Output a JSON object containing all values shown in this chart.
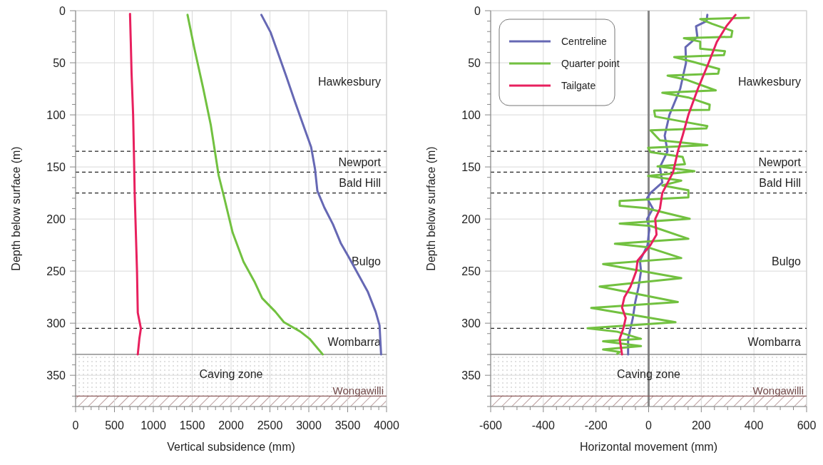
{
  "chart_data": [
    {
      "type": "line",
      "orientation": "horizontal",
      "xlabel": "Vertical subsidence (mm)",
      "ylabel": "Depth below surface (m)",
      "xlim": [
        0,
        4000
      ],
      "xticks": [
        0,
        {
          "value": 100,
          "label": null
        },
        {
          "value": 200,
          "label": null
        },
        {
          "value": 300,
          "label": null
        },
        {
          "value": 400,
          "label": null
        },
        500,
        {
          "value": 600,
          "label": null
        },
        {
          "value": 700,
          "label": null
        },
        {
          "value": 800,
          "label": null
        },
        {
          "value": 900,
          "label": null
        },
        1000,
        {
          "value": 1100,
          "label": null
        },
        {
          "value": 1200,
          "label": null
        },
        {
          "value": 1300,
          "label": null
        },
        {
          "value": 1400,
          "label": null
        },
        1500,
        {
          "value": 1600,
          "label": null
        },
        {
          "value": 1700,
          "label": null
        },
        {
          "value": 1800,
          "label": null
        },
        {
          "value": 1900,
          "label": null
        },
        2000,
        {
          "value": 2100,
          "label": null
        },
        {
          "value": 2200,
          "label": null
        },
        {
          "value": 2300,
          "label": null
        },
        {
          "value": 2400,
          "label": null
        },
        2500,
        {
          "value": 2600,
          "label": null
        },
        {
          "value": 2700,
          "label": null
        },
        {
          "value": 2800,
          "label": null
        },
        {
          "value": 2900,
          "label": null
        },
        3000,
        {
          "value": 3100,
          "label": null
        },
        {
          "value": 3200,
          "label": null
        },
        {
          "value": 3300,
          "label": null
        },
        {
          "value": 3400,
          "label": null
        },
        3500,
        {
          "value": 3600,
          "label": null
        },
        {
          "value": 3700,
          "label": null
        },
        {
          "value": 3800,
          "label": null
        },
        {
          "value": 3900,
          "label": null
        },
        4000
      ],
      "ylim": [
        380,
        0
      ],
      "yticks": [
        0,
        {
          "value": 10,
          "label": null
        },
        {
          "value": 20,
          "label": null
        },
        {
          "value": 30,
          "label": null
        },
        {
          "value": 40,
          "label": null
        },
        50,
        {
          "value": 60,
          "label": null
        },
        {
          "value": 70,
          "label": null
        },
        {
          "value": 80,
          "label": null
        },
        {
          "value": 90,
          "label": null
        },
        100,
        {
          "value": 110,
          "label": null
        },
        {
          "value": 120,
          "label": null
        },
        {
          "value": 130,
          "label": null
        },
        {
          "value": 140,
          "label": null
        },
        150,
        {
          "value": 160,
          "label": null
        },
        {
          "value": 170,
          "label": null
        },
        {
          "value": 180,
          "label": null
        },
        {
          "value": 190,
          "label": null
        },
        200,
        {
          "value": 210,
          "label": null
        },
        {
          "value": 220,
          "label": null
        },
        {
          "value": 230,
          "label": null
        },
        {
          "value": 240,
          "label": null
        },
        250,
        {
          "value": 260,
          "label": null
        },
        {
          "value": 270,
          "label": null
        },
        {
          "value": 280,
          "label": null
        },
        {
          "value": 290,
          "label": null
        },
        300,
        {
          "value": 310,
          "label": null
        },
        {
          "value": 320,
          "label": null
        },
        {
          "value": 330,
          "label": null
        },
        {
          "value": 340,
          "label": null
        },
        350,
        {
          "value": 360,
          "label": null
        },
        {
          "value": 370,
          "label": null
        },
        {
          "value": 380,
          "label": null
        }
      ],
      "grid": true,
      "series": [
        {
          "color": "#6668b4",
          "x": [
            4,
            21,
            42,
            63,
            87,
            108,
            131,
            152,
            173,
            189,
            205,
            223,
            236,
            255,
            270,
            289,
            302,
            330
          ],
          "values": [
            2390,
            2510,
            2610,
            2710,
            2820,
            2920,
            3030,
            3080,
            3110,
            3200,
            3310,
            3410,
            3510,
            3650,
            3760,
            3860,
            3910,
            3930
          ]
        },
        {
          "color": "#72c140",
          "x": [
            4,
            37,
            74,
            110,
            134,
            158,
            179,
            213,
            241,
            260,
            276,
            289,
            299,
            308,
            315,
            330
          ],
          "values": [
            1440,
            1530,
            1640,
            1740,
            1790,
            1840,
            1910,
            2020,
            2160,
            2300,
            2400,
            2570,
            2680,
            2890,
            3010,
            3180
          ]
        },
        {
          "color": "#e8205e",
          "x": [
            3,
            30,
            60,
            100,
            135,
            175,
            200,
            250,
            290,
            305,
            315,
            330
          ],
          "values": [
            700,
            710,
            720,
            740,
            750,
            760,
            770,
            790,
            800,
            840,
            820,
            800
          ]
        }
      ],
      "ref_lines": [
        {
          "axis": "y",
          "value": 135,
          "line_style": "dashed"
        },
        {
          "axis": "y",
          "value": 155,
          "line_style": "dashed"
        },
        {
          "axis": "y",
          "value": 175,
          "line_style": "dashed"
        },
        {
          "axis": "y",
          "value": 305,
          "line_style": "dashed"
        },
        {
          "axis": "y",
          "value": 330,
          "color": "#777777",
          "line_style": "solid"
        },
        {
          "axis": "y",
          "value": 370,
          "color": "#8c5a5a",
          "line_style": "solid"
        }
      ],
      "annotations": [
        "Hawkesbury",
        "Newport",
        "Bald Hill",
        "Bulgo",
        "Wombarra"
      ],
      "bands": [
        {
          "axis": "y",
          "from": 330,
          "to": 370,
          "label": "Caving zone",
          "color": "#a8a8a8"
        },
        {
          "axis": "y",
          "from": 370,
          "to": 380,
          "label": "Wongawilli",
          "color": "#8c5a5a"
        }
      ]
    },
    {
      "type": "line",
      "orientation": "horizontal",
      "xlabel": "Horizontal movement (mm)",
      "ylabel": "Depth below surface (m)",
      "xlim": [
        -600,
        600
      ],
      "xticks": [
        -600,
        {
          "value": -550,
          "label": null
        },
        {
          "value": -500,
          "label": null
        },
        {
          "value": -450,
          "label": null
        },
        -400,
        {
          "value": -350,
          "label": null
        },
        {
          "value": -300,
          "label": null
        },
        {
          "value": -250,
          "label": null
        },
        -200,
        {
          "value": -150,
          "label": null
        },
        {
          "value": -100,
          "label": null
        },
        {
          "value": -50,
          "label": null
        },
        0,
        {
          "value": 50,
          "label": null
        },
        {
          "value": 100,
          "label": null
        },
        {
          "value": 150,
          "label": null
        },
        200,
        {
          "value": 250,
          "label": null
        },
        {
          "value": 300,
          "label": null
        },
        {
          "value": 350,
          "label": null
        },
        400,
        {
          "value": 450,
          "label": null
        },
        {
          "value": 500,
          "label": null
        },
        {
          "value": 550,
          "label": null
        },
        600
      ],
      "ylim": [
        380,
        0
      ],
      "yticks": [
        0,
        {
          "value": 10,
          "label": null
        },
        {
          "value": 20,
          "label": null
        },
        {
          "value": 30,
          "label": null
        },
        {
          "value": 40,
          "label": null
        },
        50,
        {
          "value": 60,
          "label": null
        },
        {
          "value": 70,
          "label": null
        },
        {
          "value": 80,
          "label": null
        },
        {
          "value": 90,
          "label": null
        },
        100,
        {
          "value": 110,
          "label": null
        },
        {
          "value": 120,
          "label": null
        },
        {
          "value": 130,
          "label": null
        },
        {
          "value": 140,
          "label": null
        },
        150,
        {
          "value": 160,
          "label": null
        },
        {
          "value": 170,
          "label": null
        },
        {
          "value": 180,
          "label": null
        },
        {
          "value": 190,
          "label": null
        },
        200,
        {
          "value": 210,
          "label": null
        },
        {
          "value": 220,
          "label": null
        },
        {
          "value": 230,
          "label": null
        },
        {
          "value": 240,
          "label": null
        },
        250,
        {
          "value": 260,
          "label": null
        },
        {
          "value": 270,
          "label": null
        },
        {
          "value": 280,
          "label": null
        },
        {
          "value": 290,
          "label": null
        },
        300,
        {
          "value": 310,
          "label": null
        },
        {
          "value": 320,
          "label": null
        },
        {
          "value": 330,
          "label": null
        },
        {
          "value": 340,
          "label": null
        },
        350,
        {
          "value": 360,
          "label": null
        },
        {
          "value": 370,
          "label": null
        },
        {
          "value": 380,
          "label": null
        }
      ],
      "grid": true,
      "legend": "top left",
      "series": [
        {
          "name": "Centreline",
          "color": "#6668b4",
          "x": [
            4,
            10,
            15,
            25,
            35,
            50,
            75,
            100,
            120,
            135,
            150,
            165,
            175,
            180,
            190,
            200,
            210,
            215,
            225,
            240,
            250,
            265,
            280,
            295,
            305,
            315,
            330
          ],
          "values": [
            223,
            220,
            180,
            185,
            140,
            142,
            120,
            79,
            61,
            72,
            43,
            52,
            7,
            -6,
            16,
            -6,
            3,
            0,
            -4,
            -33,
            -29,
            -38,
            -51,
            -60,
            -69,
            -78,
            -78
          ]
        },
        {
          "name": "Quarter point",
          "color": "#72c140",
          "x": [
            6.8,
            8,
            12.6,
            19.4,
            25.1,
            26.3,
            29.7,
            36.5,
            38.8,
            42.7,
            44.5,
            49.1,
            56,
            60.5,
            62.3,
            66.2,
            76.5,
            78.8,
            83.3,
            90.2,
            95.2,
            95.9,
            101.6,
            106.2,
            110.7,
            113,
            114.8,
            124.4,
            129,
            131.7,
            135.8,
            140.4,
            147.3,
            149.5,
            154.1,
            158.7,
            163.2,
            167.8,
            172.4,
            179.2,
            182.6,
            187.2,
            189.5,
            199.8,
            204.3,
            206.6,
            219,
            223.8,
            227.2,
            237.5,
            243.2,
            256.8,
            264.8,
            279.7,
            285.4,
            299.1,
            304.8,
            308.2,
            315,
            317.4,
            322,
            325.3,
            327.6,
            329.4
          ],
          "values": [
            381,
            196,
            241,
            318,
            314,
            134,
            196,
            196,
            290,
            286,
            97,
            169,
            268,
            264,
            72,
            142,
            255,
            52,
            151,
            232,
            230,
            21,
            25,
            124,
            223,
            219,
            7,
            43,
            223,
            -2,
            7,
            129,
            138,
            34,
            174,
            -2,
            124,
            52,
            151,
            151,
            -110,
            -110,
            -11,
            156,
            -110,
            7,
            151,
            -128,
            -2,
            124,
            -173,
            124,
            -186,
            111,
            -218,
            102,
            -232,
            -119,
            -29,
            -173,
            -29,
            -173,
            -110,
            -119
          ]
        },
        {
          "name": "Tailgate",
          "color": "#e8205e",
          "x": [
            4,
            15,
            30,
            50,
            75,
            100,
            120,
            135,
            155,
            175,
            190,
            200,
            215,
            225,
            240,
            250,
            265,
            275,
            285,
            295,
            305,
            315,
            330
          ],
          "values": [
            330,
            295,
            259,
            228,
            187,
            151,
            129,
            111,
            93,
            52,
            43,
            25,
            30,
            7,
            -42,
            -47,
            -69,
            -92,
            -101,
            -87,
            -96,
            -110,
            -101
          ]
        }
      ],
      "ref_lines": [
        {
          "axis": "x",
          "value": 0,
          "color": "#888888",
          "line_style": "solid"
        },
        {
          "axis": "y",
          "value": 135,
          "line_style": "dashed"
        },
        {
          "axis": "y",
          "value": 155,
          "line_style": "dashed"
        },
        {
          "axis": "y",
          "value": 175,
          "line_style": "dashed"
        },
        {
          "axis": "y",
          "value": 305,
          "line_style": "dashed"
        },
        {
          "axis": "y",
          "value": 330,
          "color": "#777777",
          "line_style": "solid"
        },
        {
          "axis": "y",
          "value": 370,
          "color": "#8c5a5a",
          "line_style": "solid"
        }
      ],
      "annotations": [
        "Hawkesbury",
        "Newport",
        "Bald Hill",
        "Bulgo",
        "Wombarra"
      ],
      "bands": [
        {
          "axis": "y",
          "from": 330,
          "to": 370,
          "label": "Caving zone",
          "color": "#a8a8a8"
        },
        {
          "axis": "y",
          "from": 370,
          "to": 380,
          "label": "Wongawilli",
          "color": "#8c5a5a"
        }
      ]
    }
  ]
}
